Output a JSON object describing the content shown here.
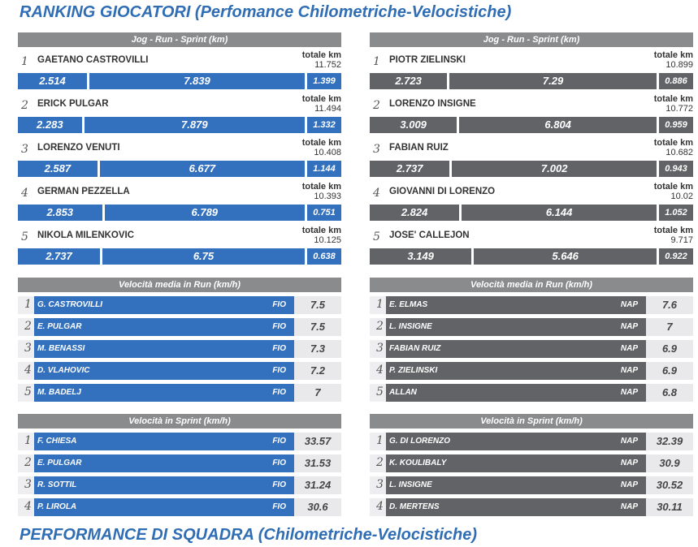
{
  "title": "RANKING GIOCATORI (Perfomance Chilometriche-Velocistiche)",
  "footer_title": "PERFORMANCE DI SQUADRA (Chilometriche-Velocistiche)",
  "km_panels": [
    {
      "header": "Jog  -  Run  -  Sprint    (km)",
      "total_label": "totale km",
      "color": "#3370be",
      "rows": [
        {
          "rank": 1,
          "name": "GAETANO CASTROVILLI",
          "total": 11.752,
          "jog": 2.514,
          "run": 7.839,
          "sprint": 1.399
        },
        {
          "rank": 2,
          "name": "ERICK PULGAR",
          "total": 11.494,
          "jog": 2.283,
          "run": 7.879,
          "sprint": 1.332
        },
        {
          "rank": 3,
          "name": "LORENZO VENUTI",
          "total": 10.408,
          "jog": 2.587,
          "run": 6.677,
          "sprint": 1.144
        },
        {
          "rank": 4,
          "name": "GERMAN PEZZELLA",
          "total": 10.393,
          "jog": 2.853,
          "run": 6.789,
          "sprint": 0.751
        },
        {
          "rank": 5,
          "name": "NIKOLA MILENKOVIC",
          "total": 10.125,
          "jog": 2.737,
          "run": 6.75,
          "sprint": 0.638
        }
      ]
    },
    {
      "header": "Jog  -  Run  -  Sprint    (km)",
      "total_label": "totale km",
      "color": "#626366",
      "rows": [
        {
          "rank": 1,
          "name": "PIOTR ZIELINSKI",
          "total": 10.899,
          "jog": 2.723,
          "run": 7.29,
          "sprint": 0.886
        },
        {
          "rank": 2,
          "name": "LORENZO INSIGNE",
          "total": 10.772,
          "jog": 3.009,
          "run": 6.804,
          "sprint": 0.959
        },
        {
          "rank": 3,
          "name": "FABIAN RUIZ",
          "total": 10.682,
          "jog": 2.737,
          "run": 7.002,
          "sprint": 0.943
        },
        {
          "rank": 4,
          "name": "GIOVANNI DI LORENZO",
          "total": 10.02,
          "jog": 2.824,
          "run": 6.144,
          "sprint": 1.052
        },
        {
          "rank": 5,
          "name": "JOSE' CALLEJON",
          "total": 9.717,
          "jog": 3.149,
          "run": 5.646,
          "sprint": 0.922
        }
      ]
    }
  ],
  "run_panels": [
    {
      "header": "Velocità media in Run     (km/h)",
      "color": "#3370be",
      "rows": [
        {
          "rank": 1,
          "name": "G. CASTROVILLI",
          "team": "FIO",
          "value": 7.5
        },
        {
          "rank": 2,
          "name": "E. PULGAR",
          "team": "FIO",
          "value": 7.5
        },
        {
          "rank": 3,
          "name": "M. BENASSI",
          "team": "FIO",
          "value": 7.3
        },
        {
          "rank": 4,
          "name": "D. VLAHOVIC",
          "team": "FIO",
          "value": 7.2
        },
        {
          "rank": 5,
          "name": "M. BADELJ",
          "team": "FIO",
          "value": 7
        }
      ]
    },
    {
      "header": "Velocità media in Run     (km/h)",
      "color": "#626366",
      "rows": [
        {
          "rank": 1,
          "name": "E. ELMAS",
          "team": "NAP",
          "value": 7.6
        },
        {
          "rank": 2,
          "name": "L. INSIGNE",
          "team": "NAP",
          "value": 7
        },
        {
          "rank": 3,
          "name": "FABIAN RUIZ",
          "team": "NAP",
          "value": 6.9
        },
        {
          "rank": 4,
          "name": "P. ZIELINSKI",
          "team": "NAP",
          "value": 6.9
        },
        {
          "rank": 5,
          "name": "ALLAN",
          "team": "NAP",
          "value": 6.8
        }
      ]
    }
  ],
  "sprint_panels": [
    {
      "header": "Velocità in Sprint     (km/h)",
      "color": "#3370be",
      "rows": [
        {
          "rank": 1,
          "name": "F. CHIESA",
          "team": "FIO",
          "value": 33.57
        },
        {
          "rank": 2,
          "name": "E. PULGAR",
          "team": "FIO",
          "value": 31.53
        },
        {
          "rank": 3,
          "name": "R. SOTTIL",
          "team": "FIO",
          "value": 31.24
        },
        {
          "rank": 4,
          "name": "P. LIROLA",
          "team": "FIO",
          "value": 30.6
        }
      ]
    },
    {
      "header": "Velocità in Sprint     (km/h)",
      "color": "#626366",
      "rows": [
        {
          "rank": 1,
          "name": "G. DI LORENZO",
          "team": "NAP",
          "value": 32.39
        },
        {
          "rank": 2,
          "name": "K. KOULIBALY",
          "team": "NAP",
          "value": 30.9
        },
        {
          "rank": 3,
          "name": "L. INSIGNE",
          "team": "NAP",
          "value": 30.52
        },
        {
          "rank": 4,
          "name": "D. MERTENS",
          "team": "NAP",
          "value": 30.11
        }
      ]
    }
  ]
}
